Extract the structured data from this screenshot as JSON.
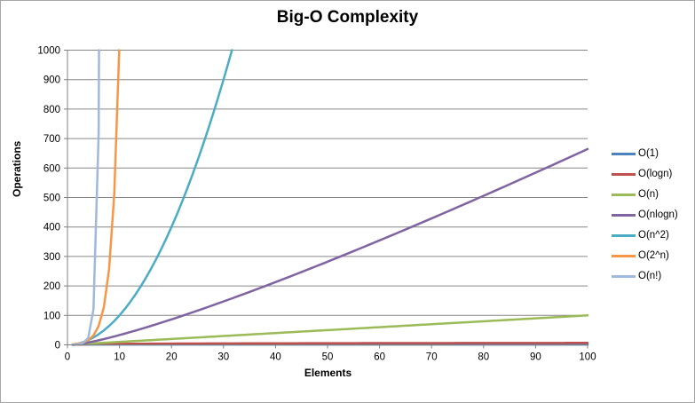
{
  "chart_data": {
    "type": "line",
    "title": "Big-O Complexity",
    "xlabel": "Elements",
    "ylabel": "Operations",
    "xlim": [
      0,
      100
    ],
    "ylim": [
      0,
      1000
    ],
    "x_ticks": [
      0,
      10,
      20,
      30,
      40,
      50,
      60,
      70,
      80,
      90,
      100
    ],
    "y_ticks": [
      0,
      100,
      200,
      300,
      400,
      500,
      600,
      700,
      800,
      900,
      1000
    ],
    "grid": "horizontal",
    "legend_position": "right",
    "sample_x_start": 1,
    "sample_x_end": 100,
    "clip_above": 1000,
    "series": [
      {
        "name": "O(1)",
        "color": "#4F81BD",
        "formula": "1",
        "values_at_x_ticks": [
          1,
          1,
          1,
          1,
          1,
          1,
          1,
          1,
          1,
          1
        ]
      },
      {
        "name": "O(logn)",
        "color": "#C0504D",
        "formula": "log2(n)",
        "values_at_x_ticks": [
          3.32,
          4.32,
          4.91,
          5.32,
          5.64,
          5.91,
          6.13,
          6.32,
          6.49,
          6.64
        ]
      },
      {
        "name": "O(n)",
        "color": "#9BBB59",
        "formula": "n",
        "values_at_x_ticks": [
          10,
          20,
          30,
          40,
          50,
          60,
          70,
          80,
          90,
          100
        ]
      },
      {
        "name": "O(nlogn)",
        "color": "#8064A2",
        "formula": "n*log2(n)",
        "values_at_x_ticks": [
          33.2,
          86.4,
          147.2,
          212.9,
          282.2,
          354.4,
          429.1,
          505.8,
          584.3,
          664.4
        ]
      },
      {
        "name": "O(n^2)",
        "color": "#4BACC6",
        "formula": "n^2",
        "values_at_x_ticks": [
          100,
          400,
          900,
          1600,
          2500,
          3600,
          4900,
          6400,
          8100,
          10000
        ]
      },
      {
        "name": "O(2^n)",
        "color": "#F79646",
        "formula": "2^n",
        "values_at_small_x": {
          "x": [
            2,
            4,
            6,
            8,
            10
          ],
          "y": [
            4,
            16,
            64,
            256,
            1024
          ]
        }
      },
      {
        "name": "O(n!)",
        "color": "#9FB9DC",
        "formula": "n!",
        "values_at_small_x": {
          "x": [
            2,
            4,
            5,
            6,
            7
          ],
          "y": [
            2,
            24,
            120,
            720,
            5040
          ]
        }
      }
    ],
    "style": {
      "grid_color": "#868686",
      "axis_color": "#808080",
      "tick_label_color": "#000000",
      "line_width": 2.5
    }
  }
}
